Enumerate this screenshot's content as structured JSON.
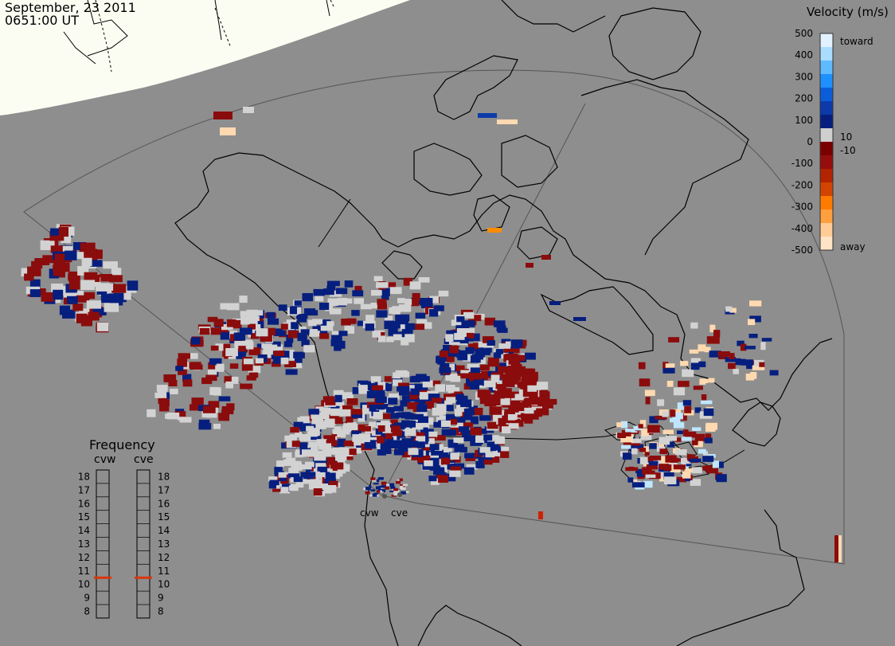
{
  "header": {
    "date": "September, 23 2011",
    "time": "0651:00 UT"
  },
  "legend": {
    "title": "Velocity (m/s)",
    "ticks": [
      "500",
      "400",
      "300",
      "200",
      "100",
      "0",
      "-100",
      "-200",
      "-300",
      "-400",
      "-500"
    ],
    "toward_label": "toward",
    "away_label": "away",
    "near_pos": "10",
    "near_neg": "-10",
    "colors": [
      "#e1f1ff",
      "#a9dcff",
      "#5fbaff",
      "#1e90ff",
      "#0c5ed8",
      "#0c3aa8",
      "#061f7e",
      "#cfcfcf",
      "#7a0000",
      "#960d0d",
      "#b22300",
      "#d24400",
      "#ff7b00",
      "#ff9f3d",
      "#ffcc96",
      "#ffe4c6"
    ]
  },
  "frequency": {
    "title": "Frequency",
    "radars": [
      "cvw",
      "cve"
    ],
    "scale": [
      "18",
      "17",
      "16",
      "15",
      "14",
      "13",
      "12",
      "11",
      "10",
      "9",
      "8"
    ],
    "current_mhz": [
      10.5,
      10.5
    ],
    "marker_color": "#d9360d"
  },
  "stations": {
    "west": "cvw",
    "east": "cve"
  },
  "colors": {
    "background": "#8e8e8e",
    "daylight": "#fbfdf2",
    "gray_scatter": "#d2d2d2"
  }
}
